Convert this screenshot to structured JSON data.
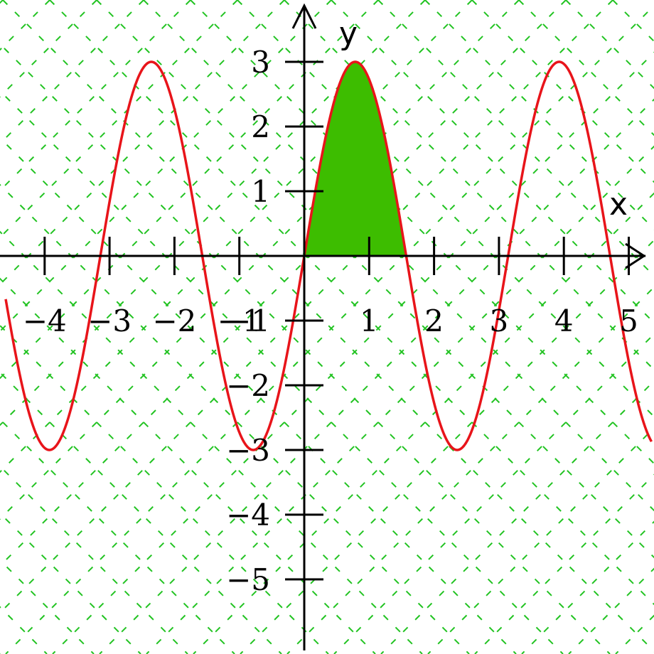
{
  "chart_data": {
    "type": "line",
    "title": "",
    "function": "3*sin(2*x)",
    "amplitude": 3,
    "frequency": 2,
    "xlabel": "x",
    "ylabel": "y",
    "xlim": [
      -4.6,
      5.35
    ],
    "ylim": [
      -6.1,
      3.9
    ],
    "plot_range": [
      -4.6,
      5.35
    ],
    "x_ticks": [
      -4,
      -3,
      -2,
      -1,
      1,
      2,
      3,
      4,
      5
    ],
    "x_tick_labels": [
      "−4",
      "−3",
      "−2",
      "−1",
      "1",
      "2",
      "3",
      "4",
      "5"
    ],
    "y_ticks": [
      3,
      2,
      1,
      -1,
      -2,
      -3,
      -4,
      -5
    ],
    "y_tick_labels": [
      "3",
      "2",
      "1",
      "−1",
      "−2",
      "−3",
      "−4",
      "−5"
    ],
    "shaded_region": {
      "from": 0,
      "to": 1.5708,
      "color": "#3dbd00"
    },
    "curve_color": "#e8141a",
    "grid": "dashed-green",
    "grid_color": "#22c322"
  }
}
